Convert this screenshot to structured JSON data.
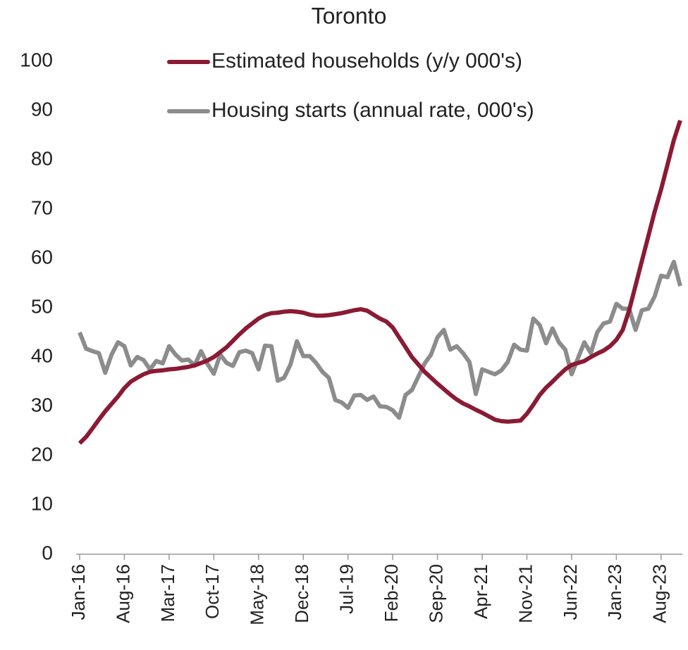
{
  "chart_data": {
    "type": "line",
    "title": "Toronto",
    "categories": [
      "Jan-16",
      null,
      null,
      null,
      null,
      null,
      null,
      "Aug-16",
      null,
      null,
      null,
      null,
      null,
      null,
      "Mar-17",
      null,
      null,
      null,
      null,
      null,
      null,
      "Oct-17",
      null,
      null,
      null,
      null,
      null,
      null,
      "May-18",
      null,
      null,
      null,
      null,
      null,
      null,
      "Dec-18",
      null,
      null,
      null,
      null,
      null,
      null,
      "Jul-19",
      null,
      null,
      null,
      null,
      null,
      null,
      "Feb-20",
      null,
      null,
      null,
      null,
      null,
      null,
      "Sep-20",
      null,
      null,
      null,
      null,
      null,
      null,
      "Apr-21",
      null,
      null,
      null,
      null,
      null,
      null,
      "Nov-21",
      null,
      null,
      null,
      null,
      null,
      null,
      "Jun-22",
      null,
      null,
      null,
      null,
      null,
      null,
      "Jan-23",
      null,
      null,
      null,
      null,
      null,
      null,
      "Aug-23",
      null,
      null,
      null
    ],
    "series": [
      {
        "name": "Estimated households (y/y 000's)",
        "color": "#8b1a34",
        "values": [
          22.5,
          23.8,
          25.5,
          27.3,
          29,
          30.5,
          32,
          33.7,
          35,
          35.8,
          36.5,
          37,
          37.2,
          37.3,
          37.5,
          37.6,
          37.8,
          38,
          38.3,
          38.8,
          39.3,
          40,
          41,
          42,
          43.3,
          44.6,
          45.8,
          46.8,
          47.8,
          48.5,
          48.9,
          49,
          49.2,
          49.3,
          49.2,
          49,
          48.6,
          48.4,
          48.4,
          48.5,
          48.7,
          48.9,
          49.2,
          49.5,
          49.7,
          49.4,
          48.6,
          47.8,
          47.2,
          46,
          44,
          42,
          40,
          38.5,
          37,
          35.8,
          34.6,
          33.5,
          32.4,
          31.4,
          30.6,
          30,
          29.3,
          28.7,
          28,
          27.3,
          27,
          26.9,
          27,
          27.1,
          28.5,
          30.3,
          32.3,
          33.8,
          35,
          36.3,
          37.5,
          38.4,
          38.8,
          39.2,
          40,
          40.7,
          41.3,
          42.2,
          43.5,
          45.5,
          49.5,
          54.5,
          59.5,
          64.5,
          69.5,
          74,
          79,
          84,
          88
        ]
      },
      {
        "name": "Housing starts (annual rate, 000's)",
        "color": "#8c8c8c",
        "values": [
          45,
          41.7,
          41.2,
          40.8,
          36.8,
          40.5,
          43,
          42.2,
          38.3,
          40,
          39.4,
          37.5,
          39.2,
          38.7,
          42.2,
          40.5,
          39.3,
          39.5,
          38.3,
          41.2,
          38.6,
          36.6,
          40.5,
          38.8,
          38.2,
          41,
          41.3,
          40.8,
          37.5,
          42.3,
          42.2,
          35.2,
          35.8,
          38.5,
          43.2,
          40.2,
          40.2,
          38.8,
          37,
          35.8,
          31.3,
          30.8,
          29.7,
          32.2,
          32.3,
          31.3,
          32,
          30,
          29.9,
          29.2,
          27.7,
          32.3,
          33.3,
          36,
          38.7,
          40.5,
          44,
          45.5,
          41.5,
          42.2,
          40.8,
          39,
          32.5,
          37.5,
          37,
          36.5,
          37.3,
          39,
          42.5,
          41.5,
          41.3,
          47.8,
          46.5,
          42.8,
          45.8,
          43,
          41.5,
          36.5,
          39.8,
          43,
          40.8,
          45,
          46.8,
          47.2,
          50.8,
          49.8,
          49.8,
          45.5,
          49.5,
          49.8,
          52.3,
          56.5,
          56.2,
          59.3,
          54.4
        ]
      }
    ],
    "ylim": [
      0,
      100
    ],
    "yticks": [
      0,
      10,
      20,
      30,
      40,
      50,
      60,
      70,
      80,
      90,
      100
    ],
    "grid": false,
    "legend": "top"
  }
}
